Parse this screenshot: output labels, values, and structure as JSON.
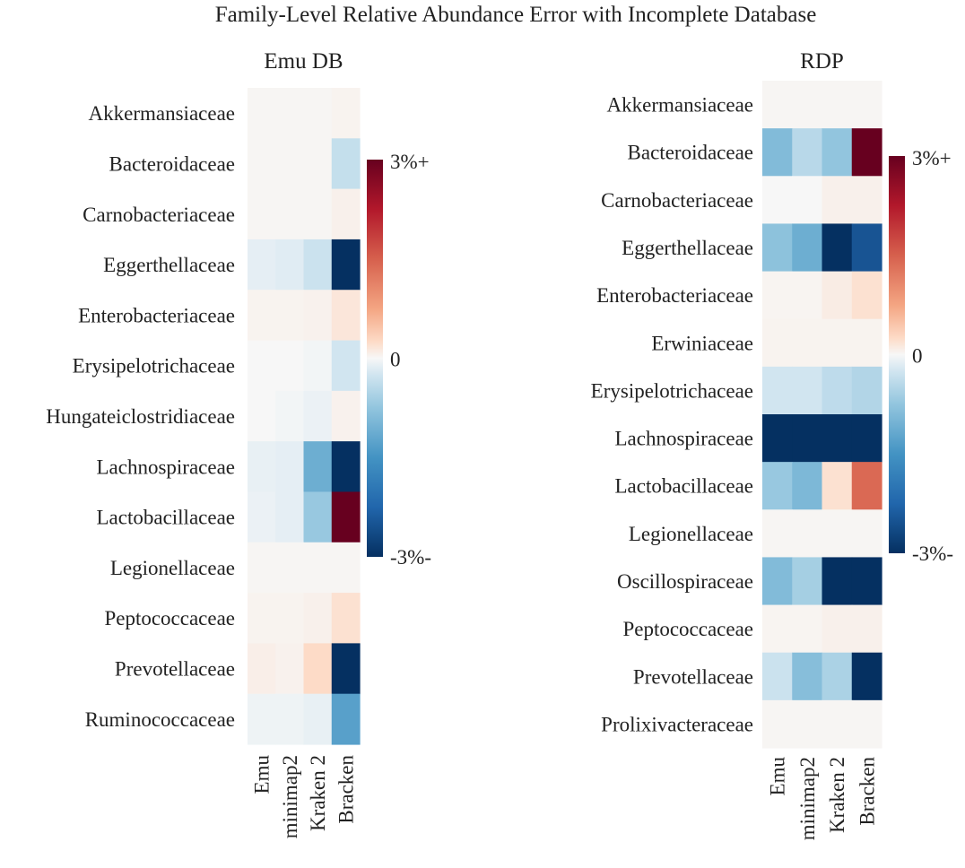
{
  "figure_title": "Family-Level Relative Abundance Error with Incomplete Database",
  "colormap": {
    "name": "RdBu_r",
    "stops": [
      {
        "v": -3,
        "color": "#053061"
      },
      {
        "v": -2.25,
        "color": "#2166ac"
      },
      {
        "v": -1.5,
        "color": "#4393c3"
      },
      {
        "v": -0.75,
        "color": "#92c5de"
      },
      {
        "v": -0.25,
        "color": "#d1e5f0"
      },
      {
        "v": 0,
        "color": "#f7f7f7"
      },
      {
        "v": 0.25,
        "color": "#fddbc7"
      },
      {
        "v": 0.75,
        "color": "#f4a582"
      },
      {
        "v": 1.5,
        "color": "#d6604d"
      },
      {
        "v": 2.25,
        "color": "#b2182b"
      },
      {
        "v": 3,
        "color": "#67001f"
      }
    ]
  },
  "chart_data": [
    {
      "type": "heatmap",
      "title": "Emu DB",
      "value_unit": "percentage points",
      "vmin": -3,
      "vmax": 3,
      "columns": [
        "Emu",
        "minimap2",
        "Kraken 2",
        "Bracken"
      ],
      "rows": [
        "Akkermansiaceae",
        "Bacteroidaceae",
        "Carnobacteriaceae",
        "Eggerthellaceae",
        "Enterobacteriaceae",
        "Erysipelotrichaceae",
        "Hungateiclostridiaceae",
        "Lachnospiraceae",
        "Lactobacillaceae",
        "Legionellaceae",
        "Peptococcaceae",
        "Prevotellaceae",
        "Ruminococcaceae"
      ],
      "values": [
        [
          0.02,
          0.02,
          0.02,
          0.04
        ],
        [
          0.02,
          0.02,
          0.02,
          -0.35
        ],
        [
          0.02,
          0.02,
          0.02,
          0.06
        ],
        [
          -0.12,
          -0.15,
          -0.3,
          -3
        ],
        [
          0.04,
          0.04,
          0.05,
          0.15
        ],
        [
          0.0,
          0.0,
          -0.03,
          -0.25
        ],
        [
          0.0,
          -0.03,
          -0.08,
          0.05
        ],
        [
          -0.1,
          -0.12,
          -1.1,
          -3
        ],
        [
          -0.08,
          -0.12,
          -0.7,
          3
        ],
        [
          0.02,
          0.02,
          0.02,
          0.02
        ],
        [
          0.04,
          0.04,
          0.06,
          0.2
        ],
        [
          0.08,
          0.05,
          0.25,
          -3
        ],
        [
          -0.06,
          -0.06,
          -0.1,
          -1.3
        ]
      ],
      "colorbar": {
        "top_label": "3%+",
        "mid_label": "0",
        "bottom_label": "-3%-"
      }
    },
    {
      "type": "heatmap",
      "title": "RDP",
      "value_unit": "percentage points",
      "vmin": -3,
      "vmax": 3,
      "columns": [
        "Emu",
        "minimap2",
        "Kraken 2",
        "Bracken"
      ],
      "rows": [
        "Akkermansiaceae",
        "Bacteroidaceae",
        "Carnobacteriaceae",
        "Eggerthellaceae",
        "Enterobacteriaceae",
        "Erwiniaceae",
        "Erysipelotrichaceae",
        "Lachnospiraceae",
        "Lactobacillaceae",
        "Legionellaceae",
        "Oscillospiraceae",
        "Peptococcaceae",
        "Prevotellaceae",
        "Prolixivacteraceae"
      ],
      "values": [
        [
          0.02,
          0.02,
          0.02,
          0.02
        ],
        [
          -0.9,
          -0.45,
          -0.75,
          3
        ],
        [
          0.0,
          0.0,
          0.06,
          0.06
        ],
        [
          -0.8,
          -1.1,
          -3,
          -2.5
        ],
        [
          0.03,
          0.03,
          0.1,
          0.2
        ],
        [
          0.04,
          0.04,
          0.04,
          0.04
        ],
        [
          -0.25,
          -0.25,
          -0.4,
          -0.5
        ],
        [
          -3,
          -3,
          -3,
          -3
        ],
        [
          -0.7,
          -0.95,
          0.2,
          1.4
        ],
        [
          0.02,
          0.02,
          0.02,
          0.02
        ],
        [
          -0.9,
          -0.6,
          -3,
          -3
        ],
        [
          0.03,
          0.03,
          0.06,
          0.06
        ],
        [
          -0.3,
          -0.85,
          -0.55,
          -3
        ],
        [
          0.02,
          0.02,
          0.02,
          0.02
        ]
      ],
      "colorbar": {
        "top_label": "3%+",
        "mid_label": "0",
        "bottom_label": "-3%-"
      }
    }
  ]
}
